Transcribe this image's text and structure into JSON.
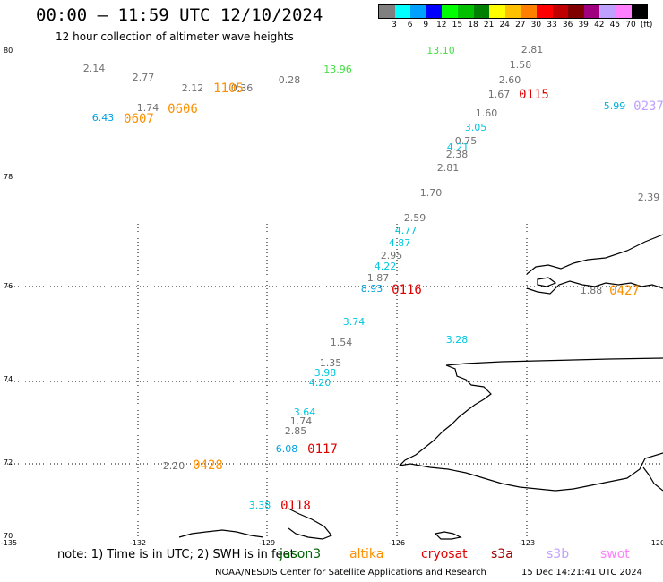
{
  "header": {
    "title": "00:00 – 11:59 UTC 12/10/2024",
    "subtitle": "12 hour collection of altimeter wave heights"
  },
  "legend": {
    "colors": [
      "#808080",
      "#00ffff",
      "#00a0ff",
      "#0000ff",
      "#00ff00",
      "#00c000",
      "#008000",
      "#ffff00",
      "#ffc000",
      "#ff8000",
      "#ff0000",
      "#c00000",
      "#800000",
      "#a00080",
      "#c0a0ff",
      "#ff80ff",
      "#000000"
    ],
    "labels": [
      "3",
      "6",
      "9",
      "12",
      "15",
      "18",
      "21",
      "24",
      "27",
      "30",
      "33",
      "36",
      "39",
      "42",
      "45",
      "70"
    ],
    "unit": "(ft)"
  },
  "map": {
    "lat_labels": [
      "80",
      "78",
      "76",
      "74",
      "72",
      "70"
    ],
    "lon_labels": [
      "-135",
      "-132",
      "-129",
      "-126",
      "-123",
      "-120"
    ],
    "lon_grid": [
      -132,
      -129,
      -126,
      -123
    ],
    "lat_grid": [
      76,
      74,
      72
    ],
    "observations": [
      {
        "text": "2.14",
        "color": "#707070"
      },
      {
        "text": "2.77",
        "color": "#707070"
      },
      {
        "text": "2.12",
        "color": "#707070"
      },
      {
        "text": "0.36",
        "color": "#707070"
      },
      {
        "text": "0.28",
        "color": "#707070"
      },
      {
        "text": "13.96",
        "color": "#40e040"
      },
      {
        "text": "13.10",
        "color": "#40e040"
      },
      {
        "text": "2.81",
        "color": "#707070"
      },
      {
        "text": "1.58",
        "color": "#707070"
      },
      {
        "text": "2.60",
        "color": "#707070"
      },
      {
        "text": "1.67",
        "color": "#707070"
      },
      {
        "text": "1.74",
        "color": "#707070"
      },
      {
        "text": "6.43",
        "color": "#00a0e0"
      },
      {
        "text": "1.60",
        "color": "#707070"
      },
      {
        "text": "3.05",
        "color": "#00c8e0"
      },
      {
        "text": "0.75",
        "color": "#707070"
      },
      {
        "text": "4.21",
        "color": "#00c8e0"
      },
      {
        "text": "2.38",
        "color": "#707070"
      },
      {
        "text": "2.81",
        "color": "#707070"
      },
      {
        "text": "5.99",
        "color": "#00b0e0"
      },
      {
        "text": "1.70",
        "color": "#707070"
      },
      {
        "text": "2.39",
        "color": "#707070"
      },
      {
        "text": "2.59",
        "color": "#707070"
      },
      {
        "text": "4.77",
        "color": "#00c8e0"
      },
      {
        "text": "4.87",
        "color": "#00c8e0"
      },
      {
        "text": "2.95",
        "color": "#707070"
      },
      {
        "text": "4.22",
        "color": "#00c8e0"
      },
      {
        "text": "1.87",
        "color": "#707070"
      },
      {
        "text": "8.93",
        "color": "#00a0e0"
      },
      {
        "text": "1.88",
        "color": "#707070"
      },
      {
        "text": "3.74",
        "color": "#00c8e0"
      },
      {
        "text": "1.54",
        "color": "#707070"
      },
      {
        "text": "3.28",
        "color": "#00c8e0"
      },
      {
        "text": "1.35",
        "color": "#707070"
      },
      {
        "text": "3.98",
        "color": "#00c8e0"
      },
      {
        "text": "4.20",
        "color": "#00c8e0"
      },
      {
        "text": "3.64",
        "color": "#00c8e0"
      },
      {
        "text": "1.74",
        "color": "#707070"
      },
      {
        "text": "2.85",
        "color": "#707070"
      },
      {
        "text": "6.08",
        "color": "#00a0e0"
      },
      {
        "text": "2.20",
        "color": "#707070"
      },
      {
        "text": "3.38",
        "color": "#00c8e0"
      }
    ],
    "pass_times": [
      {
        "text": "1105",
        "color": "#ff9000"
      },
      {
        "text": "0606",
        "color": "#ff9000"
      },
      {
        "text": "0607",
        "color": "#ff9000"
      },
      {
        "text": "0115",
        "color": "#e00000"
      },
      {
        "text": "0237",
        "color": "#c0a0ff"
      },
      {
        "text": "0116",
        "color": "#e00000"
      },
      {
        "text": "0427",
        "color": "#ff9000"
      },
      {
        "text": "0117",
        "color": "#e00000"
      },
      {
        "text": "0428",
        "color": "#ff9000"
      },
      {
        "text": "0118",
        "color": "#e00000"
      }
    ]
  },
  "footer": {
    "note": "note: 1) Time is in UTC; 2) SWH is in feet",
    "satellites": [
      {
        "name": "jason3",
        "color": "#006000"
      },
      {
        "name": "altika",
        "color": "#ff9000"
      },
      {
        "name": "cryosat",
        "color": "#e00000"
      },
      {
        "name": "s3a",
        "color": "#a00000"
      },
      {
        "name": "s3b",
        "color": "#c0a0ff"
      },
      {
        "name": "swot",
        "color": "#ff80ff"
      }
    ],
    "credit": "NOAA/NESDIS Center for Satellite Applications and Research",
    "timestamp": "15 Dec 14:21:41 UTC 2024"
  }
}
